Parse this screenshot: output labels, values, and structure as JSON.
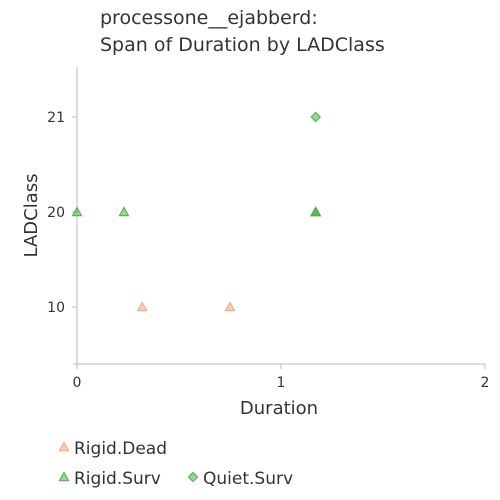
{
  "chart_data": {
    "type": "scatter",
    "title": [
      "processone__ejabberd:",
      "Span of Duration by LADClass"
    ],
    "xlabel": "Duration",
    "ylabel": "LADClass",
    "xlim": [
      0,
      2
    ],
    "x_ticks": [
      0,
      1,
      2
    ],
    "y_categories": [
      "10",
      "20",
      "21"
    ],
    "grid": false,
    "legend_position": "bottom-left",
    "series": [
      {
        "name": "Rigid.Dead",
        "marker": "triangle",
        "color": "#f4a582",
        "points": [
          {
            "x": 0.32,
            "y": "10"
          },
          {
            "x": 0.75,
            "y": "10"
          }
        ]
      },
      {
        "name": "Rigid.Surv",
        "marker": "triangle",
        "color": "#4daf4a",
        "points": [
          {
            "x": 0.0,
            "y": "20"
          },
          {
            "x": 0.23,
            "y": "20"
          },
          {
            "x": 1.17,
            "y": "20"
          },
          {
            "x": 1.17,
            "y": "20"
          },
          {
            "x": 1.17,
            "y": "20"
          }
        ]
      },
      {
        "name": "Quiet.Surv",
        "marker": "diamond",
        "color": "#4daf4a",
        "points": [
          {
            "x": 1.17,
            "y": "21"
          }
        ]
      }
    ]
  }
}
